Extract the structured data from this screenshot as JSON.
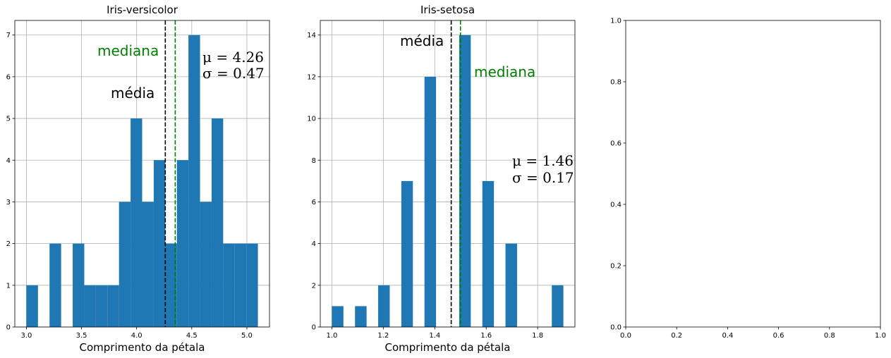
{
  "chart_data": [
    {
      "type": "bar",
      "title": "Iris-versicolor",
      "xlabel": "Comprimento da pétala",
      "ylabel": "",
      "xlim": [
        2.895,
        5.205
      ],
      "ylim": [
        0,
        7.35
      ],
      "xticks": [
        3.0,
        3.5,
        4.0,
        4.5,
        5.0
      ],
      "xtick_labels": [
        "3.0",
        "3.5",
        "4.0",
        "4.5",
        "5.0"
      ],
      "yticks": [
        0,
        1,
        2,
        3,
        4,
        5,
        6,
        7
      ],
      "ytick_labels": [
        "0",
        "1",
        "2",
        "3",
        "4",
        "5",
        "6",
        "7"
      ],
      "grid": true,
      "bar_color": "#1f77b4",
      "bin_edges": [
        3.0,
        3.105,
        3.21,
        3.315,
        3.42,
        3.525,
        3.63,
        3.735,
        3.84,
        3.945,
        4.05,
        4.155,
        4.26,
        4.365,
        4.47,
        4.575,
        4.68,
        4.785,
        4.89,
        4.995,
        5.1
      ],
      "counts": [
        1,
        0,
        2,
        0,
        2,
        1,
        1,
        1,
        3,
        5,
        3,
        4,
        2,
        4,
        7,
        3,
        5,
        2,
        2,
        2
      ],
      "mean": 4.26,
      "median": 4.35,
      "mean_color": "#000000",
      "median_color": "#008000",
      "labels": {
        "mean": "média",
        "median": "mediana",
        "mu": "μ = 4.26",
        "sigma": "σ = 0.47"
      }
    },
    {
      "type": "bar",
      "title": "Iris-setosa",
      "xlabel": "Comprimento da pétala",
      "ylabel": "",
      "xlim": [
        0.955,
        1.945
      ],
      "ylim": [
        0,
        14.7
      ],
      "xticks": [
        1.0,
        1.2,
        1.4,
        1.6,
        1.8
      ],
      "xtick_labels": [
        "1.0",
        "1.2",
        "1.4",
        "1.6",
        "1.8"
      ],
      "yticks": [
        0,
        2,
        4,
        6,
        8,
        10,
        12,
        14
      ],
      "ytick_labels": [
        "0",
        "2",
        "4",
        "6",
        "8",
        "10",
        "12",
        "14"
      ],
      "grid": true,
      "bar_color": "#1f77b4",
      "bin_edges": [
        1.0,
        1.045,
        1.09,
        1.135,
        1.18,
        1.225,
        1.27,
        1.315,
        1.36,
        1.405,
        1.45,
        1.495,
        1.54,
        1.585,
        1.63,
        1.675,
        1.72,
        1.765,
        1.81,
        1.855,
        1.9
      ],
      "counts": [
        1,
        0,
        1,
        0,
        2,
        0,
        7,
        0,
        12,
        0,
        0,
        14,
        0,
        7,
        0,
        4,
        0,
        0,
        0,
        2
      ],
      "mean": 1.464,
      "median": 1.5,
      "mean_color": "#000000",
      "median_color": "#008000",
      "labels": {
        "mean": "média",
        "median": "mediana",
        "mu": "μ = 1.46",
        "sigma": "σ = 0.17"
      }
    },
    {
      "type": "empty",
      "title": "",
      "xlabel": "",
      "ylabel": "",
      "xlim": [
        0,
        1
      ],
      "ylim": [
        0,
        1
      ],
      "xticks": [
        0,
        0.2,
        0.4,
        0.6,
        0.8,
        1.0
      ],
      "xtick_labels": [
        "0.0",
        "0.2",
        "0.4",
        "0.6",
        "0.8",
        "1.0"
      ],
      "yticks": [
        0,
        0.2,
        0.4,
        0.6,
        0.8,
        1.0
      ],
      "ytick_labels": [
        "0.0",
        "0.2",
        "0.4",
        "0.6",
        "0.8",
        "1.0"
      ],
      "grid": false
    }
  ]
}
